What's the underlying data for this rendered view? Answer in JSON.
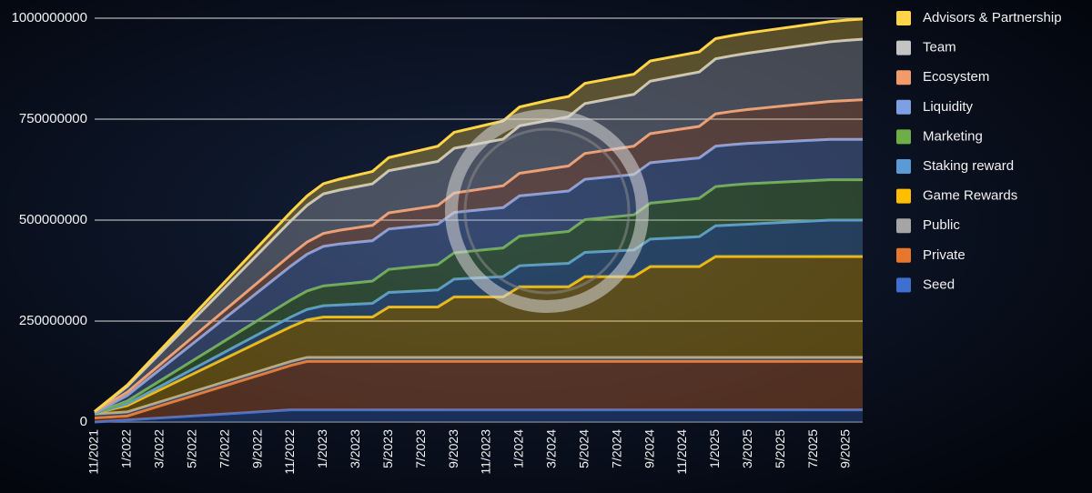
{
  "chart_data": {
    "type": "stacked_area",
    "categories": [
      "11/2021",
      null,
      "1/2022",
      null,
      "3/2022",
      null,
      "5/2022",
      null,
      "7/2022",
      null,
      "9/2022",
      null,
      "11/2022",
      null,
      "1/2023",
      null,
      "3/2023",
      null,
      "5/2023",
      null,
      "7/2023",
      null,
      "9/2023",
      null,
      "11/2023",
      null,
      "1/2024",
      null,
      "3/2024",
      null,
      "5/2024",
      null,
      "7/2024",
      null,
      "9/2024",
      null,
      "11/2024",
      null,
      "1/2025",
      null,
      "3/2025",
      null,
      "5/2025",
      null,
      "7/2025",
      null,
      "9/2025",
      null
    ],
    "ylim": [
      0,
      1000000000
    ],
    "yticks": [
      0,
      250000000,
      500000000,
      750000000,
      1000000000
    ],
    "grid": true,
    "legend_position": "right",
    "series": [
      {
        "name": "Seed",
        "color": "#3f6fd1",
        "values": [
          0,
          2500000,
          5000000,
          7500000,
          10000000,
          12500000,
          15000000,
          17500000,
          20000000,
          22500000,
          25000000,
          27500000,
          30000000,
          30000000,
          30000000,
          30000000,
          30000000,
          30000000,
          30000000,
          30000000,
          30000000,
          30000000,
          30000000,
          30000000,
          30000000,
          30000000,
          30000000,
          30000000,
          30000000,
          30000000,
          30000000,
          30000000,
          30000000,
          30000000,
          30000000,
          30000000,
          30000000,
          30000000,
          30000000,
          30000000,
          30000000,
          30000000,
          30000000,
          30000000,
          30000000,
          30000000,
          30000000,
          30000000
        ]
      },
      {
        "name": "Private",
        "color": "#e8772e",
        "values": [
          10000000,
          10000000,
          10000000,
          20000000,
          30000000,
          40000000,
          50000000,
          60000000,
          70000000,
          80000000,
          90000000,
          100000000,
          110000000,
          120000000,
          120000000,
          120000000,
          120000000,
          120000000,
          120000000,
          120000000,
          120000000,
          120000000,
          120000000,
          120000000,
          120000000,
          120000000,
          120000000,
          120000000,
          120000000,
          120000000,
          120000000,
          120000000,
          120000000,
          120000000,
          120000000,
          120000000,
          120000000,
          120000000,
          120000000,
          120000000,
          120000000,
          120000000,
          120000000,
          120000000,
          120000000,
          120000000,
          120000000,
          120000000
        ]
      },
      {
        "name": "Public",
        "color": "#a5a5a5",
        "values": [
          10000000,
          10000000,
          10000000,
          10000000,
          10000000,
          10000000,
          10000000,
          10000000,
          10000000,
          10000000,
          10000000,
          10000000,
          10000000,
          10000000,
          10000000,
          10000000,
          10000000,
          10000000,
          10000000,
          10000000,
          10000000,
          10000000,
          10000000,
          10000000,
          10000000,
          10000000,
          10000000,
          10000000,
          10000000,
          10000000,
          10000000,
          10000000,
          10000000,
          10000000,
          10000000,
          10000000,
          10000000,
          10000000,
          10000000,
          10000000,
          10000000,
          10000000,
          10000000,
          10000000,
          10000000,
          10000000,
          10000000,
          10000000
        ]
      },
      {
        "name": "Game Rewards",
        "color": "#ffbf00",
        "values": [
          2000000,
          9000000,
          16000000,
          23000000,
          30000000,
          37000000,
          44000000,
          51000000,
          58000000,
          65000000,
          72000000,
          79000000,
          86000000,
          93000000,
          100000000,
          100000000,
          100000000,
          100000000,
          125000000,
          125000000,
          125000000,
          125000000,
          150000000,
          150000000,
          150000000,
          150000000,
          175000000,
          175000000,
          175000000,
          175000000,
          200000000,
          200000000,
          200000000,
          200000000,
          225000000,
          225000000,
          225000000,
          225000000,
          250000000,
          250000000,
          250000000,
          250000000,
          250000000,
          250000000,
          250000000,
          250000000,
          250000000,
          250000000
        ]
      },
      {
        "name": "Staking reward",
        "color": "#5b9bd5",
        "values": [
          0,
          2000000,
          4000000,
          6000000,
          8000000,
          10000000,
          12000000,
          14000000,
          16000000,
          18000000,
          20000000,
          22000000,
          24000000,
          26000000,
          28000000,
          30000000,
          32000000,
          34000000,
          36000000,
          38000000,
          40000000,
          42000000,
          44000000,
          46000000,
          48000000,
          50000000,
          52000000,
          54000000,
          56000000,
          58000000,
          60000000,
          62000000,
          64000000,
          66000000,
          68000000,
          70000000,
          72000000,
          74000000,
          76000000,
          78000000,
          80000000,
          82000000,
          84000000,
          86000000,
          88000000,
          90000000,
          90000000,
          90000000
        ]
      },
      {
        "name": "Marketing",
        "color": "#6fad46",
        "values": [
          0,
          3500000,
          7000000,
          10500000,
          14000000,
          17500000,
          21000000,
          24500000,
          28000000,
          31500000,
          35000000,
          38500000,
          42000000,
          45500000,
          49000000,
          51000000,
          53000000,
          55000000,
          57000000,
          59000000,
          61000000,
          63000000,
          65000000,
          67000000,
          69000000,
          71000000,
          73000000,
          75000000,
          77000000,
          79000000,
          81000000,
          83000000,
          85000000,
          87000000,
          89000000,
          91000000,
          93000000,
          95000000,
          97000000,
          99000000,
          100000000,
          100000000,
          100000000,
          100000000,
          100000000,
          100000000,
          100000000,
          100000000
        ]
      },
      {
        "name": "Liquidity",
        "color": "#7f9fe3",
        "values": [
          0,
          7000000,
          14000000,
          21000000,
          28000000,
          35000000,
          42000000,
          49000000,
          56000000,
          63000000,
          70000000,
          77000000,
          84000000,
          91000000,
          98000000,
          100000000,
          100000000,
          100000000,
          100000000,
          100000000,
          100000000,
          100000000,
          100000000,
          100000000,
          100000000,
          100000000,
          100000000,
          100000000,
          100000000,
          100000000,
          100000000,
          100000000,
          100000000,
          100000000,
          100000000,
          100000000,
          100000000,
          100000000,
          100000000,
          100000000,
          100000000,
          100000000,
          100000000,
          100000000,
          100000000,
          100000000,
          100000000,
          100000000
        ]
      },
      {
        "name": "Ecosystem",
        "color": "#f29a6a",
        "values": [
          4000000,
          6000000,
          8000000,
          10000000,
          12000000,
          14000000,
          16000000,
          18000000,
          20000000,
          22000000,
          24000000,
          26000000,
          28000000,
          30000000,
          32000000,
          34000000,
          36000000,
          38000000,
          40000000,
          42000000,
          44000000,
          46000000,
          48000000,
          50000000,
          52000000,
          54000000,
          56000000,
          58000000,
          60000000,
          62000000,
          64000000,
          66000000,
          68000000,
          70000000,
          72000000,
          74000000,
          76000000,
          78000000,
          80000000,
          82000000,
          84000000,
          86000000,
          88000000,
          90000000,
          92000000,
          94000000,
          96000000,
          98000000
        ]
      },
      {
        "name": "Team",
        "color": "#c4c4c4",
        "values": [
          0,
          7000000,
          14000000,
          21000000,
          28000000,
          35000000,
          42000000,
          49000000,
          56000000,
          63000000,
          70000000,
          77000000,
          84000000,
          91000000,
          98000000,
          99600000,
          101200000,
          102800000,
          104400000,
          106000000,
          107600000,
          109200000,
          110800000,
          112400000,
          114000000,
          115600000,
          117200000,
          118800000,
          120400000,
          122000000,
          123600000,
          125200000,
          126800000,
          128400000,
          130000000,
          131600000,
          133200000,
          134800000,
          136400000,
          138000000,
          139600000,
          141200000,
          142800000,
          144400000,
          146000000,
          147600000,
          149200000,
          150000000
        ]
      },
      {
        "name": "Advisors & Partnership",
        "color": "#ffd447",
        "values": [
          0,
          1800000,
          3600000,
          5400000,
          7200000,
          9000000,
          10800000,
          12600000,
          14400000,
          16200000,
          18000000,
          19800000,
          21600000,
          23400000,
          25200000,
          27000000,
          28800000,
          30600000,
          32400000,
          34200000,
          36000000,
          37800000,
          39600000,
          41400000,
          43200000,
          45000000,
          46800000,
          48600000,
          50000000,
          50000000,
          50000000,
          50000000,
          50000000,
          50000000,
          50000000,
          50000000,
          50000000,
          50000000,
          50000000,
          50000000,
          50000000,
          50000000,
          50000000,
          50000000,
          50000000,
          50000000,
          50000000,
          50000000
        ]
      }
    ]
  }
}
